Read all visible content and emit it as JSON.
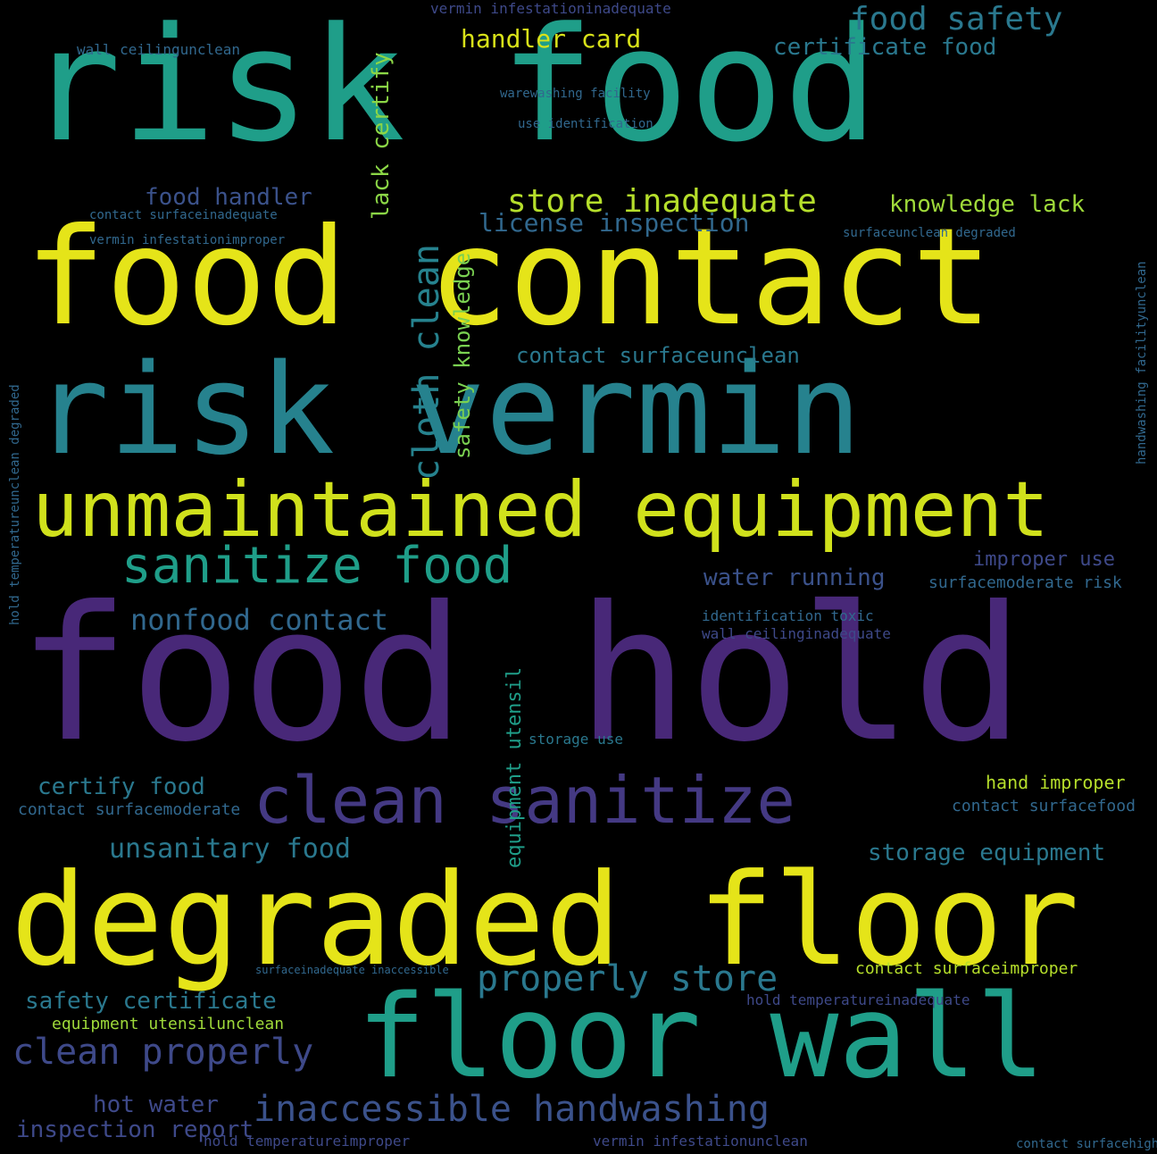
{
  "words": [
    {
      "text": "risk food",
      "color": "#1f9e89"
    },
    {
      "text": "food contact",
      "color": "#e5e419"
    },
    {
      "text": "risk vermin",
      "color": "#26828e"
    },
    {
      "text": "unmaintained equipment",
      "color": "#d0e11c"
    },
    {
      "text": "food hold",
      "color": "#482878"
    },
    {
      "text": "degraded floor",
      "color": "#e5e419"
    },
    {
      "text": "floor wall",
      "color": "#1f9e89"
    },
    {
      "text": "clean sanitize",
      "color": "#443983"
    },
    {
      "text": "sanitize food",
      "color": "#1f9e89"
    },
    {
      "text": "inaccessible handwashing",
      "color": "#3b528b"
    },
    {
      "text": "clean properly",
      "color": "#3e4989"
    },
    {
      "text": "properly store",
      "color": "#2a788e"
    },
    {
      "text": "nonfood contact",
      "color": "#31688e"
    },
    {
      "text": "cloth clean",
      "color": "#26828e"
    },
    {
      "text": "store inadequate",
      "color": "#b5de2b"
    },
    {
      "text": "license inspection",
      "color": "#31688e"
    },
    {
      "text": "food safety",
      "color": "#2a788e"
    },
    {
      "text": "handler card",
      "color": "#d8e219"
    },
    {
      "text": "certificate food",
      "color": "#2a788e"
    },
    {
      "text": "food handler",
      "color": "#3b528b"
    },
    {
      "text": "knowledge lack",
      "color": "#9fda3a"
    },
    {
      "text": "lack certify",
      "color": "#8bd646"
    },
    {
      "text": "safety knowledge",
      "color": "#7ad151"
    },
    {
      "text": "contact surfaceunclean",
      "color": "#2a788e"
    },
    {
      "text": "water running",
      "color": "#3b528b"
    },
    {
      "text": "improper use",
      "color": "#3e4989"
    },
    {
      "text": "surfacemoderate risk",
      "color": "#31688e"
    },
    {
      "text": "identification toxic",
      "color": "#31688e"
    },
    {
      "text": "wall ceilinginadequate",
      "color": "#3e4989"
    },
    {
      "text": "certify food",
      "color": "#2a788e"
    },
    {
      "text": "contact surfacemoderate",
      "color": "#31688e"
    },
    {
      "text": "unsanitary food",
      "color": "#2a788e"
    },
    {
      "text": "storage equipment",
      "color": "#2a788e"
    },
    {
      "text": "hand improper",
      "color": "#b5de2b"
    },
    {
      "text": "contact surfacefood",
      "color": "#31688e"
    },
    {
      "text": "safety certificate",
      "color": "#2a788e"
    },
    {
      "text": "equipment utensilunclean",
      "color": "#9fda3a"
    },
    {
      "text": "hot water",
      "color": "#3e4989"
    },
    {
      "text": "inspection report",
      "color": "#3e4989"
    },
    {
      "text": "hold temperatureinadequate",
      "color": "#3e4989"
    },
    {
      "text": "contact surfaceimproper",
      "color": "#b5de2b"
    },
    {
      "text": "hold temperatureimproper",
      "color": "#3e4989"
    },
    {
      "text": "vermin infestationunclean",
      "color": "#3e4989"
    },
    {
      "text": "vermin infestationinadequate",
      "color": "#3e4989"
    },
    {
      "text": "equipment utensil",
      "color": "#1f9e89"
    },
    {
      "text": "storage use",
      "color": "#2a788e"
    },
    {
      "text": "wall ceilingunclean",
      "color": "#31688e"
    },
    {
      "text": "contact surfaceinadequate",
      "color": "#31688e"
    },
    {
      "text": "vermin infestationimproper",
      "color": "#31688e"
    },
    {
      "text": "surfaceunclean degraded",
      "color": "#31688e"
    },
    {
      "text": "warewashing facility",
      "color": "#31688e"
    },
    {
      "text": "use identification",
      "color": "#31688e"
    },
    {
      "text": "hold temperatureunclean degraded",
      "color": "#31688e"
    },
    {
      "text": "handwashing facilityunclean",
      "color": "#31688e"
    },
    {
      "text": "surfaceinadequate inaccessible",
      "color": "#31688e"
    },
    {
      "text": "contact surfacehigh",
      "color": "#31688e"
    }
  ]
}
